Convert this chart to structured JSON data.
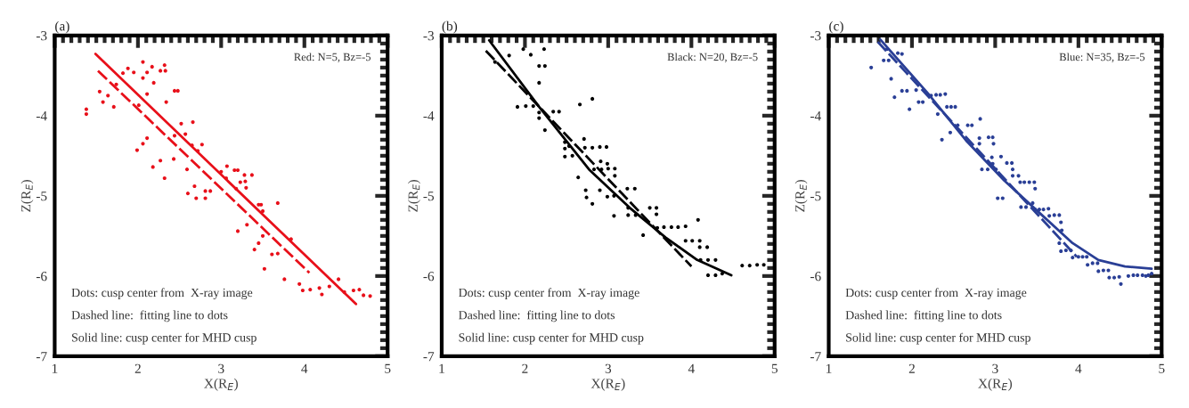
{
  "chart_data": [
    {
      "type": "scatter",
      "title": "(a)",
      "xlabel": "X(R$_{E}$)",
      "ylabel": "Z(R$_{E}$)",
      "xlim": [
        1,
        5
      ],
      "ylim": [
        -7,
        -3
      ],
      "xticks": [
        1,
        2,
        3,
        4,
        5
      ],
      "yticks": [
        -7,
        -6,
        -5,
        -4,
        -3
      ],
      "grid": false,
      "legend": false,
      "annotations": [
        "Red: N=5, Bz=-5",
        "Dots: cusp center from  X-ray image",
        "Dashed line:  fitting line to dots",
        "Solid line: cusp center for MHD cusp"
      ],
      "series": [
        {
          "marker": "circle",
          "color": "#e8101a",
          "x": [
            1.38,
            1.38,
            1.54,
            1.58,
            1.64,
            1.71,
            1.74,
            1.82,
            1.88,
            1.95,
            1.99,
            2.01,
            2.06,
            2.06,
            2.06,
            2.11,
            2.11,
            2.11,
            2.17,
            2.19,
            2.18,
            2.27,
            2.27,
            2.32,
            2.33,
            2.32,
            2.34,
            2.44,
            2.44,
            2.43,
            2.48,
            2.52,
            2.57,
            2.59,
            2.6,
            2.65,
            2.66,
            2.68,
            2.7,
            2.72,
            2.77,
            2.81,
            2.81,
            2.87,
            3.0,
            3.06,
            3.07,
            3.16,
            3.18,
            3.2,
            3.23,
            3.2,
            3.28,
            3.29,
            3.3,
            3.31,
            3.37,
            3.4,
            3.45,
            3.48,
            3.45,
            3.5,
            3.5,
            3.52,
            3.61,
            3.68,
            3.68,
            3.76,
            3.84,
            3.94,
            3.98,
            4.07,
            4.18,
            4.21,
            4.3,
            4.41,
            4.48,
            4.59,
            4.66,
            4.71,
            4.79
          ],
          "values": [
            -3.92,
            -3.98,
            -3.7,
            -3.83,
            -3.75,
            -3.89,
            -3.61,
            -3.47,
            -3.41,
            -3.46,
            -4.43,
            -3.87,
            -3.33,
            -3.53,
            -4.35,
            -3.73,
            -4.28,
            -3.46,
            -3.39,
            -3.59,
            -4.64,
            -4.56,
            -3.44,
            -3.37,
            -3.44,
            -4.78,
            -3.83,
            -3.69,
            -4.25,
            -4.54,
            -3.69,
            -4.1,
            -4.23,
            -4.67,
            -4.97,
            -4.37,
            -4.08,
            -4.88,
            -5.03,
            -4.44,
            -4.36,
            -4.94,
            -5.03,
            -4.94,
            -4.7,
            -4.78,
            -4.63,
            -4.68,
            -4.91,
            -4.68,
            -4.83,
            -5.44,
            -4.74,
            -4.82,
            -4.9,
            -5.36,
            -4.74,
            -5.67,
            -5.11,
            -5.11,
            -5.59,
            -5.19,
            -5.5,
            -5.91,
            -5.73,
            -5.72,
            -5.09,
            -6.04,
            -5.54,
            -6.1,
            -6.18,
            -6.17,
            -6.15,
            -6.23,
            -6.13,
            -6.04,
            -6.2,
            -6.18,
            -6.17,
            -6.24,
            -6.25
          ]
        },
        {
          "type": "line",
          "line_style": "dashed",
          "color": "#e8101a",
          "x": [
            1.52,
            4.06
          ],
          "values": [
            -3.44,
            -5.96
          ]
        },
        {
          "type": "line",
          "line_style": "solid",
          "color": "#e8101a",
          "x": [
            1.49,
            4.62
          ],
          "values": [
            -3.23,
            -6.35
          ]
        }
      ]
    },
    {
      "type": "scatter",
      "title": "(b)",
      "xlabel": "X(R$_{E}$)",
      "ylabel": "Z(R$_{E}$)",
      "xlim": [
        1,
        5
      ],
      "ylim": [
        -7,
        -3
      ],
      "xticks": [
        1,
        2,
        3,
        4,
        5
      ],
      "yticks": [
        -7,
        -6,
        -5,
        -4,
        -3
      ],
      "grid": false,
      "legend": false,
      "annotations": [
        "Black: N=20, Bz=-5",
        "Dots: cusp center from  X-ray image",
        "Dashed line:  fitting line to dots",
        "Solid line: cusp center for MHD cusp"
      ],
      "series": [
        {
          "marker": "circle",
          "color": "#000000",
          "x": [
            1.64,
            1.81,
            1.98,
            2.07,
            2.23,
            2.17,
            2.24,
            2.17,
            1.91,
            2.01,
            2.1,
            2.17,
            2.17,
            2.24,
            2.34,
            2.41,
            2.66,
            2.81,
            2.48,
            2.48,
            2.48,
            2.53,
            2.57,
            2.71,
            2.72,
            2.81,
            2.9,
            2.98,
            2.64,
            2.73,
            2.74,
            2.81,
            2.83,
            2.91,
            2.92,
            2.99,
            3.0,
            3.08,
            3.08,
            2.9,
            2.99,
            3.07,
            3.07,
            3.23,
            3.32,
            3.24,
            3.24,
            3.33,
            3.42,
            3.5,
            3.58,
            3.58,
            3.59,
            3.67,
            3.76,
            3.84,
            3.93,
            3.93,
            4.01,
            4.1,
            4.08,
            4.1,
            4.19,
            4.11,
            4.2,
            4.29,
            4.2,
            4.29,
            4.37,
            4.61,
            4.7,
            4.79,
            4.87
          ],
          "values": [
            -3.33,
            -3.25,
            -3.17,
            -3.24,
            -3.17,
            -3.38,
            -3.38,
            -3.59,
            -3.89,
            -3.88,
            -3.88,
            -3.96,
            -4.03,
            -4.18,
            -3.95,
            -3.95,
            -3.86,
            -3.79,
            -4.33,
            -4.41,
            -4.51,
            -4.38,
            -4.5,
            -4.29,
            -4.4,
            -4.4,
            -4.39,
            -4.39,
            -4.77,
            -4.93,
            -5.02,
            -5.1,
            -4.67,
            -4.57,
            -4.67,
            -4.6,
            -4.66,
            -4.66,
            -4.75,
            -4.93,
            -5.01,
            -5.0,
            -5.25,
            -4.91,
            -4.91,
            -5.15,
            -5.24,
            -5.24,
            -5.49,
            -5.15,
            -5.15,
            -5.23,
            -5.4,
            -5.39,
            -5.39,
            -5.39,
            -5.38,
            -5.56,
            -5.56,
            -5.56,
            -5.3,
            -5.64,
            -5.64,
            -5.8,
            -5.8,
            -5.8,
            -5.99,
            -5.99,
            -5.97,
            -5.87,
            -5.87,
            -5.86,
            -5.86
          ]
        },
        {
          "type": "line",
          "line_style": "dashed",
          "color": "#000000",
          "x": [
            1.53,
            4.0
          ],
          "values": [
            -3.19,
            -5.88
          ]
        },
        {
          "type": "line",
          "line_style": "solid",
          "color": "#000000",
          "x": [
            1.57,
            2.17,
            2.77,
            3.26,
            3.69,
            4.07,
            4.48
          ],
          "values": [
            -3.06,
            -3.89,
            -4.67,
            -5.15,
            -5.52,
            -5.8,
            -5.99
          ]
        }
      ]
    },
    {
      "type": "scatter",
      "title": "(c)",
      "xlabel": "X(R$_{E}$)",
      "ylabel": "Z(R$_{E}$)",
      "xlim": [
        1,
        5
      ],
      "ylim": [
        -7,
        -3
      ],
      "xticks": [
        1,
        2,
        3,
        4,
        5
      ],
      "yticks": [
        -7,
        -6,
        -5,
        -4,
        -3
      ],
      "grid": false,
      "legend": false,
      "annotations": [
        "Blue: N=35, Bz=-5",
        "Dots: cusp center from  X-ray image",
        "Dashed line:  fitting line to dots",
        "Solid line: cusp center for MHD cusp"
      ],
      "series": [
        {
          "marker": "circle",
          "color": "#2a3f96",
          "x": [
            1.51,
            1.66,
            1.72,
            1.7,
            1.83,
            1.88,
            1.75,
            1.79,
            1.88,
            1.94,
            2.05,
            1.97,
            2.08,
            2.13,
            2.23,
            2.29,
            2.34,
            2.4,
            2.31,
            2.42,
            2.47,
            2.52,
            2.36,
            2.46,
            2.55,
            2.67,
            2.72,
            2.82,
            2.81,
            2.81,
            2.92,
            2.97,
            2.98,
            2.84,
            2.91,
            2.96,
            2.97,
            3.01,
            3.07,
            3.03,
            3.09,
            3.14,
            3.2,
            3.21,
            3.21,
            3.28,
            3.3,
            3.35,
            3.41,
            3.47,
            3.48,
            3.31,
            3.37,
            3.45,
            3.48,
            3.53,
            3.58,
            3.64,
            3.65,
            3.71,
            3.77,
            3.79,
            3.8,
            3.77,
            3.79,
            3.85,
            3.91,
            3.93,
            4.0,
            4.05,
            4.1,
            4.11,
            4.17,
            4.23,
            4.24,
            4.3,
            4.36,
            4.37,
            4.43,
            4.49,
            4.51,
            4.6,
            4.66,
            4.71,
            4.77,
            4.81,
            4.84,
            4.88
          ],
          "values": [
            -3.4,
            -3.31,
            -3.31,
            -3.17,
            -3.22,
            -3.23,
            -3.54,
            -3.77,
            -3.69,
            -3.69,
            -3.68,
            -3.92,
            -3.83,
            -3.83,
            -3.75,
            -3.74,
            -3.74,
            -3.73,
            -3.98,
            -3.89,
            -3.89,
            -3.89,
            -4.3,
            -4.21,
            -4.12,
            -4.12,
            -4.12,
            -4.04,
            -4.28,
            -4.35,
            -4.27,
            -4.27,
            -4.35,
            -4.67,
            -4.67,
            -4.52,
            -4.6,
            -4.67,
            -4.51,
            -5.03,
            -5.03,
            -4.59,
            -4.59,
            -4.67,
            -4.75,
            -4.75,
            -4.83,
            -4.83,
            -4.83,
            -4.83,
            -4.91,
            -5.14,
            -5.14,
            -5.09,
            -5.17,
            -5.17,
            -5.17,
            -5.16,
            -5.25,
            -5.24,
            -5.24,
            -5.33,
            -5.43,
            -5.59,
            -5.69,
            -5.68,
            -5.68,
            -5.77,
            -5.76,
            -5.76,
            -5.76,
            -5.86,
            -5.84,
            -5.84,
            -5.94,
            -5.93,
            -5.93,
            -6.02,
            -6.02,
            -6.01,
            -6.1,
            -6.0,
            -5.99,
            -5.99,
            -5.99,
            -6.0,
            -5.99,
            -5.97
          ]
        },
        {
          "type": "line",
          "line_style": "dashed",
          "color": "#2a3f96",
          "x": [
            1.59,
            3.98
          ],
          "values": [
            -3.08,
            -5.76
          ]
        },
        {
          "type": "line",
          "line_style": "solid",
          "color": "#2a3f96",
          "x": [
            1.62,
            2.19,
            2.65,
            3.11,
            3.54,
            3.93,
            4.24,
            4.56,
            4.88
          ],
          "values": [
            -3.05,
            -3.72,
            -4.31,
            -4.81,
            -5.22,
            -5.59,
            -5.8,
            -5.88,
            -5.91
          ]
        }
      ]
    }
  ]
}
